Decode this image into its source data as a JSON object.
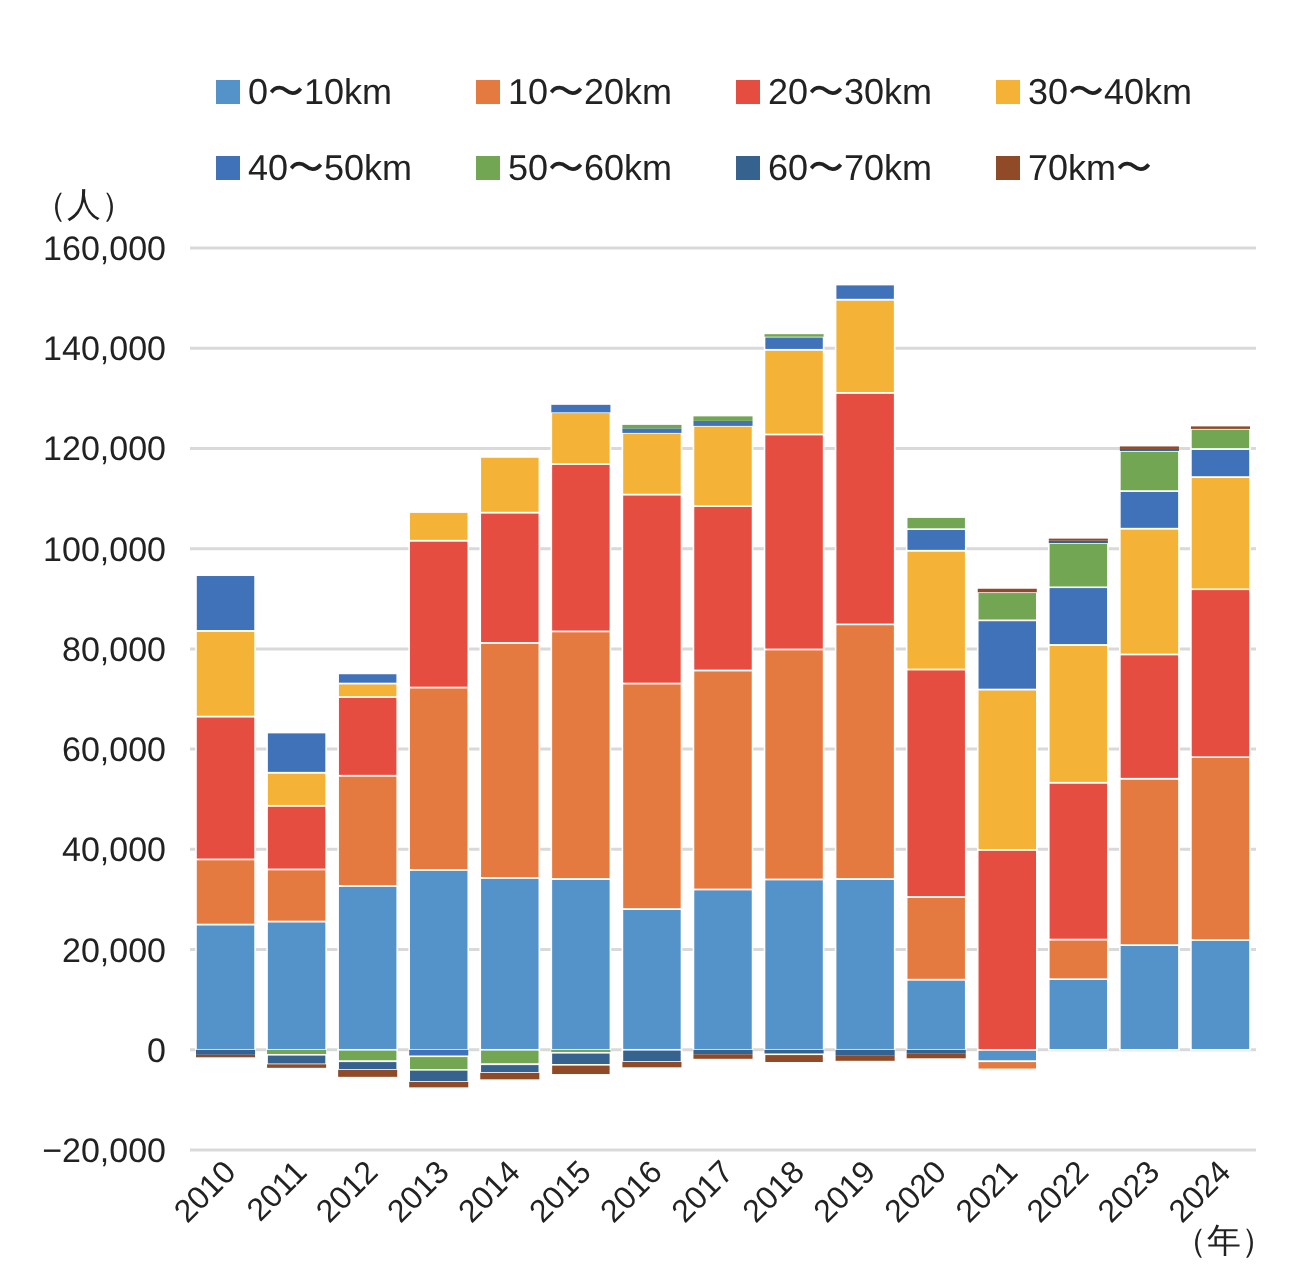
{
  "chart_data": {
    "type": "bar",
    "stacked": true,
    "ylabel": "（人）",
    "xlabel": "（年）",
    "legend": "top",
    "grid": "y",
    "categories": [
      "2010",
      "2011",
      "2012",
      "2013",
      "2014",
      "2015",
      "2016",
      "2017",
      "2018",
      "2019",
      "2020",
      "2021",
      "2022",
      "2023",
      "2024"
    ],
    "ylim": [
      -20000,
      160000
    ],
    "yticks": [
      {
        "value": -20000,
        "label": "−20,000"
      },
      {
        "value": 0,
        "label": "0"
      },
      {
        "value": 20000,
        "label": "20,000"
      },
      {
        "value": 40000,
        "label": "40,000"
      },
      {
        "value": 60000,
        "label": "60,000"
      },
      {
        "value": 80000,
        "label": "80,000"
      },
      {
        "value": 100000,
        "label": "100,000"
      },
      {
        "value": 120000,
        "label": "120,000"
      },
      {
        "value": 140000,
        "label": "140,000"
      },
      {
        "value": 160000,
        "label": "160,000"
      }
    ],
    "series": [
      {
        "name": "0〜10km",
        "color": "#5393c9",
        "values": [
          25000,
          25600,
          32700,
          35900,
          34300,
          34100,
          28100,
          32000,
          34000,
          34100,
          14000,
          -2300,
          14100,
          20900,
          21900
        ]
      },
      {
        "name": "10〜20km",
        "color": "#e57a40",
        "values": [
          13000,
          10400,
          22000,
          36400,
          46900,
          49400,
          45000,
          43700,
          45900,
          50800,
          16500,
          -1600,
          7900,
          33200,
          36500
        ]
      },
      {
        "name": "20〜30km",
        "color": "#e54d40",
        "values": [
          28500,
          12700,
          15700,
          29300,
          26000,
          33400,
          37700,
          32800,
          42900,
          46200,
          45400,
          39900,
          31300,
          24800,
          33500
        ]
      },
      {
        "name": "30〜40km",
        "color": "#f4b337",
        "values": [
          17100,
          6600,
          2700,
          5700,
          11100,
          10300,
          12300,
          16000,
          16900,
          18600,
          23700,
          32000,
          27500,
          25100,
          22400
        ]
      },
      {
        "name": "40〜50km",
        "color": "#4072ba",
        "values": [
          11100,
          8000,
          2000,
          -1300,
          null,
          1500,
          900,
          1000,
          2600,
          3000,
          4300,
          13800,
          11500,
          7500,
          5600
        ]
      },
      {
        "name": "50〜60km",
        "color": "#72a653",
        "values": [
          null,
          -1000,
          -2300,
          -2700,
          -2900,
          -600,
          700,
          900,
          500,
          null,
          2400,
          5600,
          8800,
          8000,
          4000
        ]
      },
      {
        "name": "60〜70km",
        "color": "#35628f",
        "values": [
          -1000,
          -1900,
          -1700,
          -2400,
          -1700,
          -2400,
          -2400,
          -900,
          -900,
          -1100,
          -700,
          null,
          500,
          400,
          null
        ]
      },
      {
        "name": "70km〜",
        "color": "#8f4a28",
        "values": [
          -500,
          -700,
          -1400,
          -1100,
          -1300,
          -2000,
          -1100,
          -900,
          -1700,
          -1100,
          -1000,
          700,
          400,
          500,
          500
        ]
      }
    ]
  }
}
